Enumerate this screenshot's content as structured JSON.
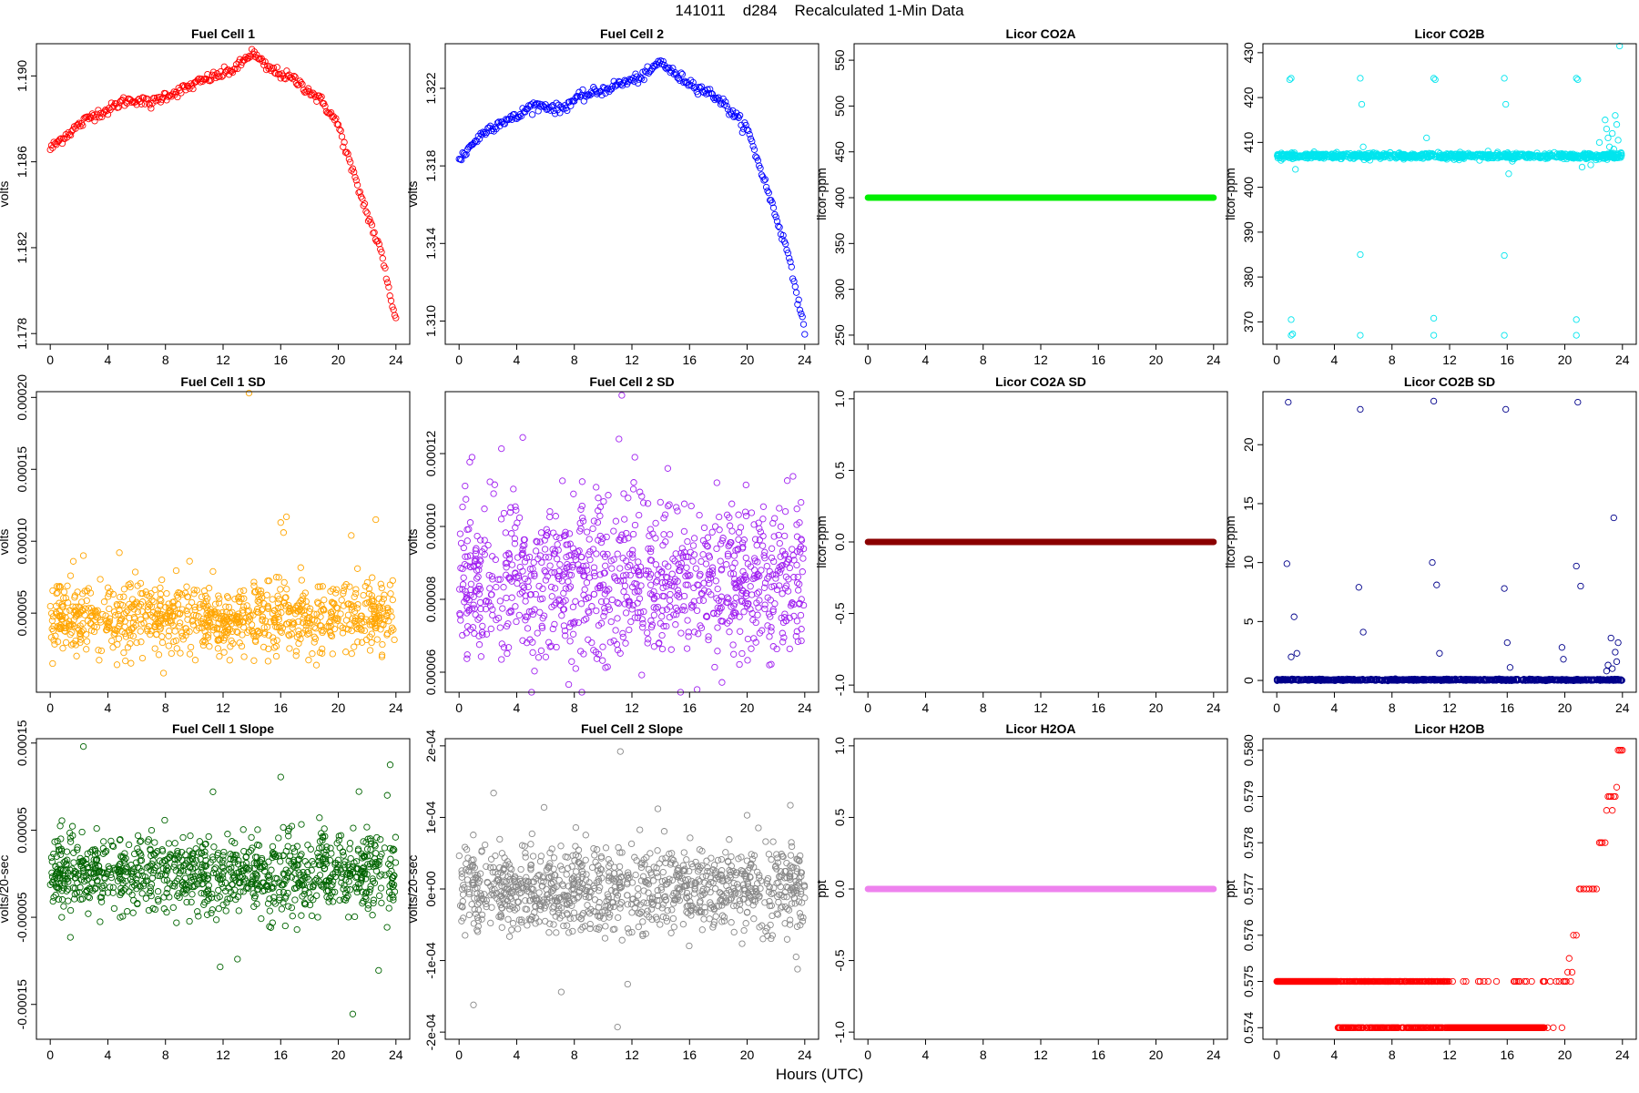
{
  "figure": {
    "title": "141011    d284    Recalculated 1-Min Data",
    "xlabel": "Hours (UTC)"
  },
  "chart_data": [
    {
      "type": "scatter",
      "title": "Fuel Cell 1",
      "ylabel": "volts",
      "color": "#ff0000",
      "xlim": [
        0,
        24
      ],
      "ylim": [
        1.1775,
        1.1915
      ],
      "x_ticks": [
        0,
        4,
        8,
        12,
        16,
        20,
        24
      ],
      "x_tick_labels": [
        "0",
        "4",
        "8",
        "12",
        "16",
        "20",
        "24"
      ],
      "y_ticks": [
        1.178,
        1.182,
        1.186,
        1.19
      ],
      "y_tick_labels": [
        "1.178",
        "1.182",
        "1.186",
        "1.190"
      ],
      "series": [
        {
          "style": "line-points",
          "density": 12,
          "noise": 0.00012,
          "x": [
            0,
            1,
            2,
            3,
            4,
            5,
            6,
            7,
            8,
            9,
            10,
            11,
            12,
            13,
            14,
            15,
            16,
            17,
            18,
            19,
            20,
            21,
            22,
            23,
            24
          ],
          "y": [
            1.1866,
            1.1872,
            1.1877,
            1.1882,
            1.1884,
            1.1888,
            1.1889,
            1.1887,
            1.1891,
            1.1893,
            1.1896,
            1.1899,
            1.1901,
            1.1904,
            1.1911,
            1.1904,
            1.1901,
            1.1898,
            1.1893,
            1.1887,
            1.1877,
            1.1855,
            1.1836,
            1.1817,
            1.1786
          ]
        }
      ]
    },
    {
      "type": "scatter",
      "title": "Fuel Cell 2",
      "ylabel": "volts",
      "color": "#0000ff",
      "xlim": [
        0,
        24
      ],
      "ylim": [
        1.3088,
        1.3243
      ],
      "x_ticks": [
        0,
        4,
        8,
        12,
        16,
        20,
        24
      ],
      "x_tick_labels": [
        "0",
        "4",
        "8",
        "12",
        "16",
        "20",
        "24"
      ],
      "y_ticks": [
        1.31,
        1.314,
        1.318,
        1.322
      ],
      "y_tick_labels": [
        "1.310",
        "1.314",
        "1.318",
        "1.322"
      ],
      "series": [
        {
          "style": "line-points",
          "density": 12,
          "noise": 0.00013,
          "x": [
            0,
            1,
            2,
            3,
            4,
            5,
            6,
            7,
            8,
            9,
            10,
            11,
            12,
            13,
            14,
            15,
            16,
            17,
            18,
            19,
            20,
            21,
            22,
            23,
            24
          ],
          "y": [
            1.3183,
            1.3192,
            1.3199,
            1.3203,
            1.3205,
            1.3211,
            1.3211,
            1.3209,
            1.3214,
            1.3217,
            1.3219,
            1.3222,
            1.3224,
            1.3227,
            1.3234,
            1.3227,
            1.3223,
            1.3219,
            1.3215,
            1.3207,
            1.3199,
            1.3177,
            1.3154,
            1.3131,
            1.3093
          ]
        }
      ]
    },
    {
      "type": "scatter",
      "title": "Licor CO2A",
      "ylabel": "licor-ppm",
      "color": "#00ee00",
      "xlim": [
        0,
        24
      ],
      "ylim": [
        240,
        568
      ],
      "x_ticks": [
        0,
        4,
        8,
        12,
        16,
        20,
        24
      ],
      "x_tick_labels": [
        "0",
        "4",
        "8",
        "12",
        "16",
        "20",
        "24"
      ],
      "y_ticks": [
        250,
        300,
        350,
        400,
        450,
        500,
        550
      ],
      "y_tick_labels": [
        "250",
        "300",
        "350",
        "400",
        "450",
        "500",
        "550"
      ],
      "series": [
        {
          "style": "flat",
          "x": [
            0,
            24
          ],
          "y": [
            400,
            400
          ]
        }
      ]
    },
    {
      "type": "scatter",
      "title": "Licor CO2B",
      "ylabel": "licor-ppm",
      "color": "#00e5ee",
      "xlim": [
        0,
        24
      ],
      "ylim": [
        365,
        432
      ],
      "x_ticks": [
        0,
        4,
        8,
        12,
        16,
        20,
        24
      ],
      "x_tick_labels": [
        "0",
        "4",
        "8",
        "12",
        "16",
        "20",
        "24"
      ],
      "y_ticks": [
        370,
        380,
        390,
        400,
        410,
        420,
        430
      ],
      "y_tick_labels": [
        "370",
        "380",
        "390",
        "400",
        "410",
        "420",
        "430"
      ],
      "series": [
        {
          "style": "band",
          "x": [
            0,
            24
          ],
          "y": [
            407,
            407
          ],
          "spread": 0.3,
          "count": 900
        },
        {
          "style": "points",
          "x": [
            1.0,
            1.0,
            1.0,
            0.9,
            1.1,
            5.8,
            5.8,
            5.8,
            5.9,
            10.9,
            10.9,
            10.9,
            11.0,
            15.8,
            15.8,
            15.8,
            15.9,
            20.8,
            20.8,
            20.8,
            20.9,
            0.3,
            1.3,
            6.0,
            11.2,
            16.1,
            21.2,
            22.4,
            22.8,
            23.0,
            23.1,
            23.3,
            23.4,
            23.5,
            23.6,
            23.7,
            21.8,
            22.2,
            23.8,
            10.4,
            22.9
          ],
          "y": [
            424.3,
            370.5,
            367.0,
            424.0,
            367.3,
            424.3,
            385.0,
            367.0,
            418.5,
            424.3,
            370.8,
            367.0,
            424.0,
            424.3,
            384.8,
            367.0,
            418.5,
            424.3,
            370.5,
            367.0,
            424.0,
            406.0,
            404.0,
            409.0,
            407.8,
            403.0,
            404.5,
            410.0,
            415.0,
            411.0,
            409.0,
            412.0,
            408.5,
            416.0,
            414.0,
            410.5,
            405.0,
            406.5,
            431.5,
            411.0,
            413.0
          ]
        }
      ]
    },
    {
      "type": "scatter",
      "title": "Fuel Cell 1 SD",
      "ylabel": "volts",
      "color": "#ffa500",
      "xlim": [
        0,
        24
      ],
      "ylim": [
        -5e-06,
        0.000204
      ],
      "x_ticks": [
        0,
        4,
        8,
        12,
        16,
        20,
        24
      ],
      "x_tick_labels": [
        "0",
        "4",
        "8",
        "12",
        "16",
        "20",
        "24"
      ],
      "y_ticks": [
        5e-05,
        0.0001,
        0.00015,
        0.0002
      ],
      "y_tick_labels": [
        "0.00005",
        "0.00010",
        "0.00015",
        "0.00020"
      ],
      "series": [
        {
          "style": "band",
          "x": [
            0,
            24
          ],
          "y": [
            4.6e-05,
            4.6e-05
          ],
          "spread": 1.2e-05,
          "count": 900
        },
        {
          "style": "points",
          "x": [
            13.8,
            16.0,
            16.4,
            16.2,
            22.6,
            20.9,
            4.8,
            1.6,
            2.3,
            0.7,
            2.8,
            15.7
          ],
          "y": [
            0.000203,
            0.000113,
            0.000117,
            0.000106,
            0.000115,
            0.000104,
            9.2e-05,
            8.6e-05,
            9e-05,
            6.8e-05,
            6.4e-05,
            7.5e-05
          ]
        }
      ]
    },
    {
      "type": "scatter",
      "title": "Fuel Cell 2 SD",
      "ylabel": "volts",
      "color": "#a020f0",
      "xlim": [
        0,
        24
      ],
      "ylim": [
        5.45e-05,
        0.000137
      ],
      "x_ticks": [
        0,
        4,
        8,
        12,
        16,
        20,
        24
      ],
      "x_tick_labels": [
        "0",
        "4",
        "8",
        "12",
        "16",
        "20",
        "24"
      ],
      "y_ticks": [
        6e-05,
        8e-05,
        0.0001,
        0.00012
      ],
      "y_tick_labels": [
        "0.00006",
        "0.00008",
        "0.00010",
        "0.00012"
      ],
      "series": [
        {
          "style": "band",
          "x": [
            0,
            24
          ],
          "y": [
            8.5e-05,
            8.5e-05
          ],
          "spread": 1.1e-05,
          "count": 1000
        },
        {
          "style": "points",
          "x": [
            11.3,
            11.1,
            12.2,
            0.9,
            8.1,
            2.4,
            17.9,
            14.6
          ],
          "y": [
            0.000136,
            0.000124,
            0.000119,
            0.000119,
            6.1e-05,
            0.000109,
            0.000112,
            0.000106
          ]
        }
      ]
    },
    {
      "type": "scatter",
      "title": "Licor CO2A SD",
      "ylabel": "licor-ppm",
      "color": "#8b0000",
      "xlim": [
        0,
        24
      ],
      "ylim": [
        -1.05,
        1.05
      ],
      "x_ticks": [
        0,
        4,
        8,
        12,
        16,
        20,
        24
      ],
      "x_tick_labels": [
        "0",
        "4",
        "8",
        "12",
        "16",
        "20",
        "24"
      ],
      "y_ticks": [
        -1,
        -0.5,
        0,
        0.5,
        1
      ],
      "y_tick_labels": [
        "-1.0",
        "-0.5",
        "0.0",
        "0.5",
        "1.0"
      ],
      "series": [
        {
          "style": "flat",
          "x": [
            0,
            24
          ],
          "y": [
            0,
            0
          ]
        }
      ]
    },
    {
      "type": "scatter",
      "title": "Licor CO2B SD",
      "ylabel": "licor-ppm",
      "color": "#00008b",
      "xlim": [
        0,
        24
      ],
      "ylim": [
        -1,
        24.5
      ],
      "x_ticks": [
        0,
        4,
        8,
        12,
        16,
        20,
        24
      ],
      "x_tick_labels": [
        "0",
        "4",
        "8",
        "12",
        "16",
        "20",
        "24"
      ],
      "y_ticks": [
        0,
        5,
        10,
        15,
        20
      ],
      "y_tick_labels": [
        "0",
        "5",
        "10",
        "15",
        "20"
      ],
      "series": [
        {
          "style": "band",
          "x": [
            0,
            24
          ],
          "y": [
            0.05,
            0.05
          ],
          "spread": 0.03,
          "count": 900
        },
        {
          "style": "points",
          "x": [
            0.8,
            0.7,
            1.2,
            1.0,
            1.4,
            5.8,
            5.7,
            6.0,
            10.9,
            10.8,
            11.1,
            11.3,
            15.9,
            15.8,
            16.0,
            16.2,
            20.9,
            20.8,
            21.1,
            19.8,
            19.9,
            23.4,
            23.2,
            23.5,
            23.6,
            23.3,
            23.7,
            22.9,
            23.0
          ],
          "y": [
            23.6,
            9.9,
            5.4,
            2.0,
            2.3,
            23.0,
            7.9,
            4.1,
            23.7,
            10.0,
            8.1,
            2.3,
            23.0,
            7.8,
            3.2,
            1.1,
            23.6,
            9.7,
            8.0,
            2.8,
            1.8,
            13.8,
            3.6,
            2.4,
            1.6,
            1.0,
            3.2,
            0.8,
            1.3
          ]
        }
      ]
    },
    {
      "type": "scatter",
      "title": "Fuel Cell 1 Slope",
      "ylabel": "volts/20-sec",
      "color": "#006400",
      "xlim": [
        0,
        24
      ],
      "ylim": [
        -0.00019,
        0.000155
      ],
      "x_ticks": [
        0,
        4,
        8,
        12,
        16,
        20,
        24
      ],
      "x_tick_labels": [
        "0",
        "4",
        "8",
        "12",
        "16",
        "20",
        "24"
      ],
      "y_ticks": [
        -0.00015,
        -5e-05,
        5e-05,
        0.00015
      ],
      "y_tick_labels": [
        "-0.00015",
        "-0.00005",
        "0.00005",
        "0.00015"
      ],
      "series": [
        {
          "style": "band",
          "x": [
            0,
            24
          ],
          "y": [
            0,
            0
          ],
          "spread": 2.2e-05,
          "count": 1000
        },
        {
          "style": "points",
          "x": [
            2.3,
            21.0,
            11.8,
            13.0,
            11.3,
            16.0,
            23.6,
            23.4,
            22.8,
            0.8,
            1.4
          ],
          "y": [
            0.000146,
            -0.000161,
            -0.000107,
            -9.8e-05,
            9.4e-05,
            0.000111,
            0.000125,
            9e-05,
            -0.000111,
            -5e-05,
            -7.3e-05
          ]
        }
      ]
    },
    {
      "type": "scatter",
      "title": "Fuel Cell 2 Slope",
      "ylabel": "volts/20-sec",
      "color": "#888888",
      "xlim": [
        0,
        24
      ],
      "ylim": [
        -0.00021,
        0.00021
      ],
      "x_ticks": [
        0,
        4,
        8,
        12,
        16,
        20,
        24
      ],
      "x_tick_labels": [
        "0",
        "4",
        "8",
        "12",
        "16",
        "20",
        "24"
      ],
      "y_ticks": [
        -0.0002,
        -0.0001,
        0,
        0.0001,
        0.0002
      ],
      "y_tick_labels": [
        "-2e-04",
        "-1e-04",
        "0e+00",
        "1e-04",
        "2e-04"
      ],
      "series": [
        {
          "style": "band",
          "x": [
            0,
            24
          ],
          "y": [
            0,
            0
          ],
          "spread": 3e-05,
          "count": 1000
        },
        {
          "style": "points",
          "x": [
            11.2,
            11.0,
            1.0,
            2.4,
            5.9,
            11.7,
            13.8,
            20.0,
            23.0,
            23.5,
            23.4
          ],
          "y": [
            0.000192,
            -0.000193,
            -0.000162,
            0.000134,
            0.000114,
            -0.000133,
            0.000112,
            0.000103,
            0.000117,
            -0.000112,
            -9.5e-05
          ]
        }
      ]
    },
    {
      "type": "scatter",
      "title": "Licor H2OA",
      "ylabel": "ppt",
      "color": "#ee82ee",
      "xlim": [
        0,
        24
      ],
      "ylim": [
        -1.05,
        1.05
      ],
      "x_ticks": [
        0,
        4,
        8,
        12,
        16,
        20,
        24
      ],
      "x_tick_labels": [
        "0",
        "4",
        "8",
        "12",
        "16",
        "20",
        "24"
      ],
      "y_ticks": [
        -1,
        -0.5,
        0,
        0.5,
        1
      ],
      "y_tick_labels": [
        "-1.0",
        "-0.5",
        "0.0",
        "0.5",
        "1.0"
      ],
      "series": [
        {
          "style": "flat",
          "x": [
            0,
            24
          ],
          "y": [
            0,
            0
          ]
        }
      ]
    },
    {
      "type": "scatter",
      "title": "Licor H2OB",
      "ylabel": "ppt",
      "color": "#ff0000",
      "xlim": [
        0,
        24
      ],
      "ylim": [
        0.57375,
        0.58025
      ],
      "x_ticks": [
        0,
        4,
        8,
        12,
        16,
        20,
        24
      ],
      "x_tick_labels": [
        "0",
        "4",
        "8",
        "12",
        "16",
        "20",
        "24"
      ],
      "y_ticks": [
        0.574,
        0.575,
        0.576,
        0.577,
        0.578,
        0.579,
        0.58
      ],
      "y_tick_labels": [
        "0.574",
        "0.575",
        "0.576",
        "0.577",
        "0.578",
        "0.579",
        "0.580"
      ],
      "series": [
        {
          "style": "quantized",
          "levels": [
            0.574,
            0.575
          ],
          "segments": [
            {
              "from": 0,
              "to": 4.2,
              "p_high": 1.0
            },
            {
              "from": 4.2,
              "to": 12.0,
              "p_high": 0.55
            },
            {
              "from": 12.0,
              "to": 18.6,
              "p_high": 0.04
            }
          ],
          "count": 800
        },
        {
          "style": "points",
          "x": [
            18.6,
            18.8,
            19.0,
            19.2,
            19.4,
            19.6,
            19.8,
            19.9,
            20.0,
            20.1,
            20.2,
            20.3,
            20.4,
            20.5,
            20.6,
            20.8,
            21.0,
            21.1,
            21.3,
            21.5,
            21.7,
            21.9,
            22.0,
            22.2,
            22.4,
            22.5,
            22.6,
            22.8,
            22.9,
            23.0,
            23.1,
            23.2,
            23.3,
            23.4,
            23.5,
            23.6,
            23.7,
            23.8,
            23.9,
            24.0
          ],
          "y": [
            0.575,
            0.574,
            0.575,
            0.574,
            0.575,
            0.575,
            0.574,
            0.575,
            0.575,
            0.575,
            0.5752,
            0.5755,
            0.575,
            0.5752,
            0.576,
            0.576,
            0.577,
            0.577,
            0.577,
            0.577,
            0.577,
            0.577,
            0.577,
            0.577,
            0.578,
            0.578,
            0.578,
            0.578,
            0.5787,
            0.579,
            0.579,
            0.579,
            0.5787,
            0.579,
            0.579,
            0.5792,
            0.58,
            0.58,
            0.58,
            0.58
          ]
        }
      ]
    }
  ]
}
